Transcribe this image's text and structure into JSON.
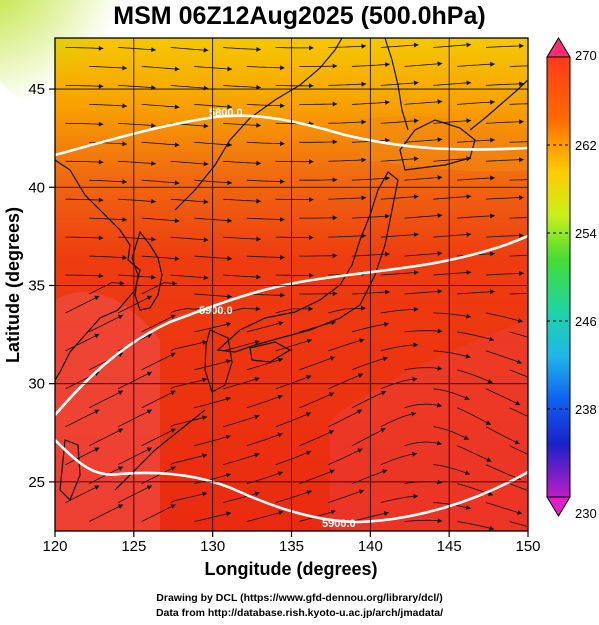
{
  "title": "MSM 06Z12Aug2025 (500.0hPa)",
  "x_axis": {
    "title": "Longitude (degrees)",
    "range": [
      120,
      150
    ],
    "ticks": [
      "120",
      "125",
      "130",
      "135",
      "140",
      "145",
      "150"
    ]
  },
  "y_axis": {
    "title": "Latitude  (degrees)",
    "range": [
      22.5,
      47.6
    ],
    "ticks": [
      "25",
      "30",
      "35",
      "40",
      "45"
    ]
  },
  "colorbar": {
    "range": [
      230,
      270
    ],
    "labels": [
      "270",
      "262",
      "254",
      "246",
      "238",
      "230"
    ],
    "colors": [
      "#ff2d6e",
      "#ff3a1a",
      "#ff7a00",
      "#ffcc00",
      "#c8ef1a",
      "#55dd22",
      "#1ed49a",
      "#1fb6e8",
      "#1060f0",
      "#1a22c8",
      "#6a1ab8",
      "#d21ccc"
    ]
  },
  "contours": [
    {
      "label": "5800.0"
    },
    {
      "label": "5900.0"
    },
    {
      "label": "5900.0"
    }
  ],
  "credits": [
    "Drawing by DCL (https://www.gfd-dennou.org/library/dcl/)",
    "Data from http://database.rish.kyoto-u.ac.jp/arch/jmadata/"
  ]
}
